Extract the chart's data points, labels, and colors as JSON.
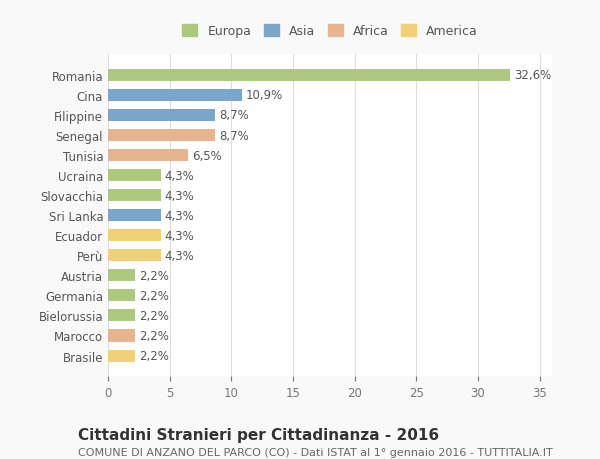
{
  "countries": [
    "Romania",
    "Cina",
    "Filippine",
    "Senegal",
    "Tunisia",
    "Ucraina",
    "Slovacchia",
    "Sri Lanka",
    "Ecuador",
    "Perù",
    "Austria",
    "Germania",
    "Bielorussia",
    "Marocco",
    "Brasile"
  ],
  "values": [
    32.6,
    10.9,
    8.7,
    8.7,
    6.5,
    4.3,
    4.3,
    4.3,
    4.3,
    4.3,
    2.2,
    2.2,
    2.2,
    2.2,
    2.2
  ],
  "labels": [
    "32,6%",
    "10,9%",
    "8,7%",
    "8,7%",
    "6,5%",
    "4,3%",
    "4,3%",
    "4,3%",
    "4,3%",
    "4,3%",
    "2,2%",
    "2,2%",
    "2,2%",
    "2,2%",
    "2,2%"
  ],
  "continents": [
    "Europa",
    "Asia",
    "Asia",
    "Africa",
    "Africa",
    "Europa",
    "Europa",
    "Asia",
    "America",
    "America",
    "Europa",
    "Europa",
    "Europa",
    "Africa",
    "America"
  ],
  "continent_colors": {
    "Europa": "#adc97e",
    "Asia": "#7aa6cb",
    "Africa": "#e8b48e",
    "America": "#f0d078"
  },
  "legend_order": [
    "Europa",
    "Asia",
    "Africa",
    "America"
  ],
  "title": "Cittadini Stranieri per Cittadinanza - 2016",
  "subtitle": "COMUNE DI ANZANO DEL PARCO (CO) - Dati ISTAT al 1° gennaio 2016 - TUTTITALIA.IT",
  "xlim": [
    0,
    36
  ],
  "xticks": [
    0,
    5,
    10,
    15,
    20,
    25,
    30,
    35
  ],
  "background_color": "#f9f9f9",
  "plot_bg_color": "#ffffff",
  "grid_color": "#dddddd",
  "bar_height": 0.6,
  "label_fontsize": 8.5,
  "title_fontsize": 11,
  "subtitle_fontsize": 8,
  "legend_fontsize": 9,
  "tick_fontsize": 8.5
}
